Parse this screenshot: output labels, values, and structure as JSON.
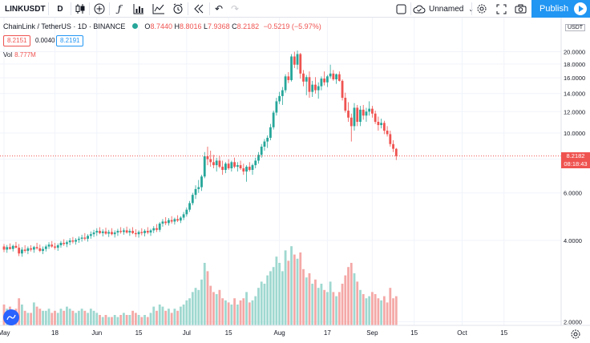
{
  "toolbar": {
    "symbol": "LINKUSDT",
    "interval": "D",
    "layout_name": "Unnamed",
    "publish_label": "Publish",
    "icons": [
      "candles-icon",
      "add-indicator-icon",
      "fx-icon",
      "bar-chart-icon",
      "compare-icon",
      "alert-icon",
      "replay-icon",
      "undo-icon",
      "redo-icon",
      "square-icon",
      "cloud-icon",
      "settings-icon",
      "fullscreen-icon",
      "camera-icon"
    ]
  },
  "legend": {
    "title": "ChainLink / TetherUS · 1D · BINANCE",
    "open": "8.7440",
    "high": "8.8016",
    "low": "7.9368",
    "close": "8.2182",
    "change": "−0.5219 (−5.97%)",
    "bid": "8.2151",
    "spread": "0.0040",
    "ask": "8.2191",
    "vol_label": "Vol",
    "vol_value": "8.777M"
  },
  "price_axis": {
    "currency": "USDT",
    "current_price": "8.2182",
    "countdown": "08:18:43"
  },
  "chart_data": {
    "type": "candlestick",
    "y_ticks": [
      "2.0000",
      "4.0000",
      "6.0000",
      "8.0000",
      "10.0000",
      "12.0000",
      "14.0000",
      "16.0000",
      "18.0000",
      "20.0000"
    ],
    "y_tick_values": [
      2,
      4,
      6,
      8,
      10,
      12,
      14,
      16,
      18,
      20
    ],
    "x_ticks": [
      "May",
      "18",
      "Jun",
      "15",
      "Jul",
      "15",
      "Aug",
      "17",
      "Sep",
      "15",
      "Oct",
      "15"
    ],
    "x_tick_days": [
      0,
      17,
      31,
      45,
      61,
      75,
      92,
      108,
      123,
      137,
      153,
      167
    ],
    "ylim": [
      1.5,
      22.0
    ],
    "colors": {
      "up": "#26a69a",
      "down": "#ef5350",
      "vol_up": "#9fd8d0",
      "vol_down": "#f4a9a7"
    },
    "candles": [
      [
        3.8,
        3.88,
        3.62,
        3.7,
        1.0
      ],
      [
        3.7,
        3.85,
        3.6,
        3.78,
        0.8
      ],
      [
        3.78,
        3.9,
        3.7,
        3.72,
        0.9
      ],
      [
        3.72,
        3.86,
        3.64,
        3.82,
        0.7
      ],
      [
        3.82,
        3.95,
        3.74,
        3.76,
        0.8
      ],
      [
        3.76,
        3.88,
        3.5,
        3.58,
        1.3
      ],
      [
        3.58,
        3.78,
        3.48,
        3.7,
        1.0
      ],
      [
        3.7,
        3.84,
        3.6,
        3.66,
        0.7
      ],
      [
        3.66,
        3.8,
        3.56,
        3.74,
        0.6
      ],
      [
        3.74,
        3.84,
        3.64,
        3.7,
        0.6
      ],
      [
        3.7,
        3.82,
        3.6,
        3.78,
        1.1
      ],
      [
        3.78,
        3.92,
        3.7,
        3.74,
        0.9
      ],
      [
        3.74,
        3.86,
        3.62,
        3.66,
        0.8
      ],
      [
        3.66,
        3.8,
        3.56,
        3.72,
        0.7
      ],
      [
        3.72,
        3.86,
        3.64,
        3.8,
        0.7
      ],
      [
        3.8,
        3.94,
        3.72,
        3.86,
        0.8
      ],
      [
        3.86,
        3.98,
        3.76,
        3.8,
        0.6
      ],
      [
        3.8,
        3.92,
        3.7,
        3.76,
        0.7
      ],
      [
        3.76,
        3.9,
        3.66,
        3.84,
        0.6
      ],
      [
        3.84,
        3.98,
        3.76,
        3.92,
        0.8
      ],
      [
        3.92,
        4.04,
        3.82,
        3.88,
        0.7
      ],
      [
        3.88,
        4.0,
        3.78,
        3.94,
        0.9
      ],
      [
        3.94,
        4.08,
        3.84,
        4.0,
        0.8
      ],
      [
        4.0,
        4.12,
        3.9,
        3.96,
        0.7
      ],
      [
        3.96,
        4.08,
        3.86,
        4.02,
        0.6
      ],
      [
        4.02,
        4.14,
        3.92,
        4.06,
        0.7
      ],
      [
        4.06,
        4.2,
        3.96,
        4.1,
        0.8
      ],
      [
        4.1,
        4.26,
        4.0,
        4.06,
        0.7
      ],
      [
        4.06,
        4.22,
        3.96,
        4.16,
        0.6
      ],
      [
        4.16,
        4.32,
        4.06,
        4.22,
        0.8
      ],
      [
        4.22,
        4.38,
        4.12,
        4.28,
        0.7
      ],
      [
        4.28,
        4.44,
        4.16,
        4.34,
        0.6
      ],
      [
        4.34,
        4.48,
        4.22,
        4.26,
        0.5
      ],
      [
        4.26,
        4.4,
        4.14,
        4.32,
        0.4
      ],
      [
        4.32,
        4.46,
        4.2,
        4.24,
        0.5
      ],
      [
        4.24,
        4.38,
        4.12,
        4.3,
        0.4
      ],
      [
        4.3,
        4.44,
        4.18,
        4.22,
        0.4
      ],
      [
        4.22,
        4.36,
        4.1,
        4.28,
        0.5
      ],
      [
        4.28,
        4.42,
        4.16,
        4.34,
        0.4
      ],
      [
        4.34,
        4.48,
        4.24,
        4.3,
        0.5
      ],
      [
        4.3,
        4.44,
        4.2,
        4.36,
        0.6
      ],
      [
        4.36,
        4.5,
        4.24,
        4.28,
        0.5
      ],
      [
        4.28,
        4.42,
        4.16,
        4.34,
        0.5
      ],
      [
        4.34,
        4.48,
        4.22,
        4.26,
        0.7
      ],
      [
        4.26,
        4.4,
        4.12,
        4.22,
        0.6
      ],
      [
        4.22,
        4.36,
        4.1,
        4.3,
        0.5
      ],
      [
        4.3,
        4.44,
        4.18,
        4.26,
        0.4
      ],
      [
        4.26,
        4.4,
        4.14,
        4.34,
        0.5
      ],
      [
        4.34,
        4.48,
        4.22,
        4.28,
        0.4
      ],
      [
        4.28,
        4.42,
        4.16,
        4.36,
        0.6
      ],
      [
        4.36,
        4.52,
        4.26,
        4.44,
        0.9
      ],
      [
        4.44,
        4.6,
        4.3,
        4.38,
        0.7
      ],
      [
        4.38,
        4.68,
        4.3,
        4.62,
        1.0
      ],
      [
        4.62,
        4.8,
        4.5,
        4.7,
        0.9
      ],
      [
        4.7,
        4.88,
        4.56,
        4.64,
        0.7
      ],
      [
        4.64,
        4.84,
        4.54,
        4.76,
        0.8
      ],
      [
        4.76,
        4.92,
        4.62,
        4.7,
        0.6
      ],
      [
        4.7,
        4.86,
        4.58,
        4.8,
        0.8
      ],
      [
        4.8,
        4.96,
        4.68,
        4.74,
        0.7
      ],
      [
        4.74,
        4.92,
        4.64,
        4.86,
        0.9
      ],
      [
        4.86,
        5.1,
        4.76,
        5.0,
        1.0
      ],
      [
        5.0,
        5.3,
        4.9,
        5.2,
        1.2
      ],
      [
        5.2,
        5.6,
        5.1,
        5.5,
        1.3
      ],
      [
        5.5,
        6.0,
        5.4,
        5.9,
        1.6
      ],
      [
        5.9,
        6.4,
        5.7,
        6.2,
        1.8
      ],
      [
        6.2,
        6.7,
        6.0,
        6.3,
        1.7
      ],
      [
        6.3,
        7.0,
        6.1,
        6.9,
        2.2
      ],
      [
        6.9,
        8.5,
        6.8,
        8.2,
        3.0
      ],
      [
        8.2,
        8.9,
        7.6,
        8.0,
        2.6
      ],
      [
        8.0,
        8.6,
        7.5,
        7.8,
        1.9
      ],
      [
        7.8,
        8.3,
        7.4,
        7.6,
        1.6
      ],
      [
        7.6,
        8.1,
        7.2,
        7.9,
        1.5
      ],
      [
        7.9,
        8.2,
        7.4,
        7.5,
        1.7
      ],
      [
        7.5,
        7.9,
        7.0,
        7.3,
        1.3
      ],
      [
        7.3,
        7.8,
        7.1,
        7.7,
        1.2
      ],
      [
        7.7,
        8.0,
        7.3,
        7.4,
        1.1
      ],
      [
        7.4,
        7.9,
        7.2,
        7.8,
        1.0
      ],
      [
        7.8,
        8.1,
        7.4,
        7.5,
        1.3
      ],
      [
        7.5,
        7.8,
        7.2,
        7.6,
        1.0
      ],
      [
        7.6,
        7.9,
        7.3,
        7.4,
        1.2
      ],
      [
        7.4,
        7.7,
        7.0,
        7.2,
        1.3
      ],
      [
        7.2,
        7.6,
        6.6,
        7.5,
        1.6
      ],
      [
        7.5,
        7.8,
        7.2,
        7.3,
        1.1
      ],
      [
        7.3,
        7.7,
        7.0,
        7.6,
        1.2
      ],
      [
        7.6,
        8.1,
        7.4,
        7.9,
        1.4
      ],
      [
        7.9,
        8.5,
        7.7,
        8.3,
        1.8
      ],
      [
        8.3,
        9.1,
        8.1,
        8.9,
        2.1
      ],
      [
        8.9,
        9.5,
        8.6,
        9.3,
        2.0
      ],
      [
        9.3,
        9.8,
        8.8,
        9.6,
        2.4
      ],
      [
        9.6,
        10.8,
        9.4,
        10.5,
        2.6
      ],
      [
        10.5,
        12.1,
        10.3,
        11.9,
        2.8
      ],
      [
        11.9,
        13.5,
        11.6,
        13.1,
        3.3
      ],
      [
        13.1,
        14.2,
        12.8,
        13.7,
        3.0
      ],
      [
        13.7,
        14.8,
        12.7,
        14.4,
        2.6
      ],
      [
        14.4,
        16.5,
        14.1,
        16.2,
        3.6
      ],
      [
        16.2,
        16.8,
        15.3,
        15.7,
        3.1
      ],
      [
        15.7,
        19.6,
        15.5,
        19.2,
        3.8
      ],
      [
        19.2,
        20.0,
        17.4,
        17.9,
        3.4
      ],
      [
        17.9,
        20.2,
        17.2,
        19.6,
        3.2
      ],
      [
        19.6,
        19.8,
        15.9,
        16.6,
        3.5
      ],
      [
        16.6,
        17.1,
        14.9,
        15.5,
        2.7
      ],
      [
        15.5,
        16.4,
        13.8,
        16.1,
        2.3
      ],
      [
        16.1,
        16.9,
        13.5,
        14.2,
        2.5
      ],
      [
        14.2,
        15.6,
        13.6,
        15.1,
        2.0
      ],
      [
        15.1,
        16.1,
        14.0,
        14.4,
        2.2
      ],
      [
        14.4,
        15.4,
        13.4,
        14.9,
        1.8
      ],
      [
        14.9,
        16.2,
        14.4,
        15.9,
        2.0
      ],
      [
        15.9,
        16.9,
        15.0,
        15.4,
        1.7
      ],
      [
        15.4,
        16.4,
        14.8,
        16.2,
        1.6
      ],
      [
        16.2,
        17.9,
        15.9,
        16.6,
        2.1
      ],
      [
        16.6,
        17.1,
        15.6,
        15.8,
        1.6
      ],
      [
        15.8,
        16.6,
        15.2,
        16.5,
        1.4
      ],
      [
        16.5,
        16.9,
        15.5,
        15.6,
        1.6
      ],
      [
        15.6,
        15.8,
        13.2,
        13.5,
        2.0
      ],
      [
        13.5,
        14.1,
        11.9,
        12.1,
        2.4
      ],
      [
        12.1,
        13.0,
        11.0,
        11.4,
        2.8
      ],
      [
        11.4,
        11.8,
        9.3,
        10.6,
        3.0
      ],
      [
        10.6,
        12.9,
        10.2,
        12.4,
        2.5
      ],
      [
        12.4,
        12.7,
        10.6,
        11.0,
        2.1
      ],
      [
        11.0,
        12.6,
        10.6,
        12.2,
        1.7
      ],
      [
        12.2,
        12.7,
        11.2,
        11.6,
        1.5
      ],
      [
        11.6,
        12.4,
        11.0,
        12.0,
        1.3
      ],
      [
        12.0,
        13.1,
        11.6,
        12.3,
        1.4
      ],
      [
        12.3,
        12.6,
        11.4,
        11.8,
        1.6
      ],
      [
        11.8,
        12.1,
        10.8,
        11.0,
        1.5
      ],
      [
        11.0,
        11.5,
        10.2,
        10.7,
        1.3
      ],
      [
        10.7,
        11.3,
        10.4,
        10.9,
        1.2
      ],
      [
        10.9,
        11.1,
        9.9,
        10.2,
        1.4
      ],
      [
        10.2,
        10.6,
        9.7,
        9.9,
        1.1
      ],
      [
        9.9,
        10.2,
        8.9,
        9.1,
        1.8
      ],
      [
        9.1,
        9.4,
        8.5,
        8.74,
        1.3
      ],
      [
        8.74,
        8.8,
        7.94,
        8.22,
        1.4
      ]
    ]
  }
}
